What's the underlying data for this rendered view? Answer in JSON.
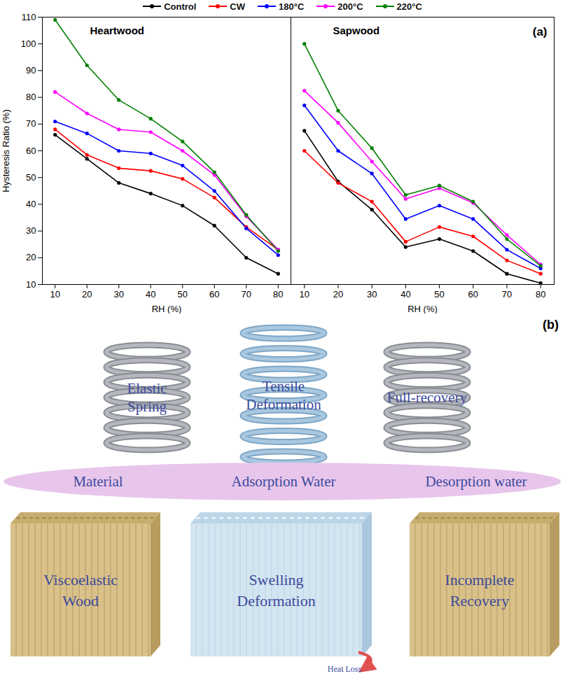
{
  "chart_data": [
    {
      "type": "line",
      "title": "Heartwood",
      "x_label": "RH (%)",
      "y_label": "Hysteresis Ratio (%)",
      "x": [
        10,
        20,
        30,
        40,
        50,
        60,
        70,
        80
      ],
      "xlim": [
        6,
        84
      ],
      "xticks": [
        10,
        20,
        30,
        40,
        50,
        60,
        70,
        80
      ],
      "ylim": [
        10,
        110
      ],
      "yticks": [
        10,
        20,
        30,
        40,
        50,
        60,
        70,
        80,
        90,
        100,
        110
      ],
      "marker": "circle",
      "legend": "top",
      "series": [
        {
          "name": "Control",
          "color": "#000000",
          "values": [
            66,
            57,
            48,
            44,
            39.5,
            32,
            20,
            14
          ]
        },
        {
          "name": "CW",
          "color": "#ff0000",
          "values": [
            68,
            58.5,
            53.5,
            52.5,
            49.5,
            42.5,
            31.5,
            23
          ]
        },
        {
          "name": "180°C",
          "color": "#0000ff",
          "values": [
            71,
            66.5,
            60,
            59,
            54.5,
            45,
            31,
            21
          ]
        },
        {
          "name": "200°C",
          "color": "#ff00ff",
          "values": [
            82,
            74,
            68,
            67,
            60,
            51,
            35.5,
            23
          ]
        },
        {
          "name": "220°C",
          "color": "#008000",
          "values": [
            109,
            92,
            79,
            72,
            63.5,
            52,
            36,
            22.5
          ]
        }
      ]
    },
    {
      "type": "line",
      "title": "Sapwood",
      "x_label": "RH (%)",
      "x": [
        10,
        20,
        30,
        40,
        50,
        60,
        70,
        80
      ],
      "xlim": [
        6,
        84
      ],
      "xticks": [
        10,
        20,
        30,
        40,
        50,
        60,
        70,
        80
      ],
      "ylim": [
        10,
        110
      ],
      "yticks": [
        10,
        20,
        30,
        40,
        50,
        60,
        70,
        80,
        90,
        100,
        110
      ],
      "marker": "circle",
      "tick_labels": "x",
      "series": [
        {
          "name": "Control",
          "color": "#000000",
          "values": [
            67.5,
            48.5,
            38,
            24,
            27,
            22.5,
            14,
            10.5
          ]
        },
        {
          "name": "CW",
          "color": "#ff0000",
          "values": [
            60,
            48,
            41,
            26,
            31.5,
            28,
            19,
            14
          ]
        },
        {
          "name": "180°C",
          "color": "#0000ff",
          "values": [
            77,
            60,
            51.5,
            34.5,
            39.5,
            34.5,
            23,
            16
          ]
        },
        {
          "name": "200°C",
          "color": "#ff00ff",
          "values": [
            82.5,
            70.5,
            56,
            42,
            46,
            40.5,
            28.5,
            17.5
          ]
        },
        {
          "name": "220°C",
          "color": "#008000",
          "values": [
            100,
            75,
            61,
            43.5,
            47,
            41,
            27,
            17
          ]
        }
      ]
    }
  ],
  "panel_labels": [
    "(a)",
    "(b)"
  ],
  "diagram": {
    "springs": [
      "Elastic Spring",
      "Tensile Deformation",
      "Full-recovery"
    ],
    "band": [
      "Material",
      "Adsorption Water",
      "Desorption water"
    ],
    "blocks": [
      "Viscoelastic Wood",
      "Swelling Deformation",
      "Incomplete Recovery"
    ],
    "heat_loss": "Heat Loss"
  }
}
